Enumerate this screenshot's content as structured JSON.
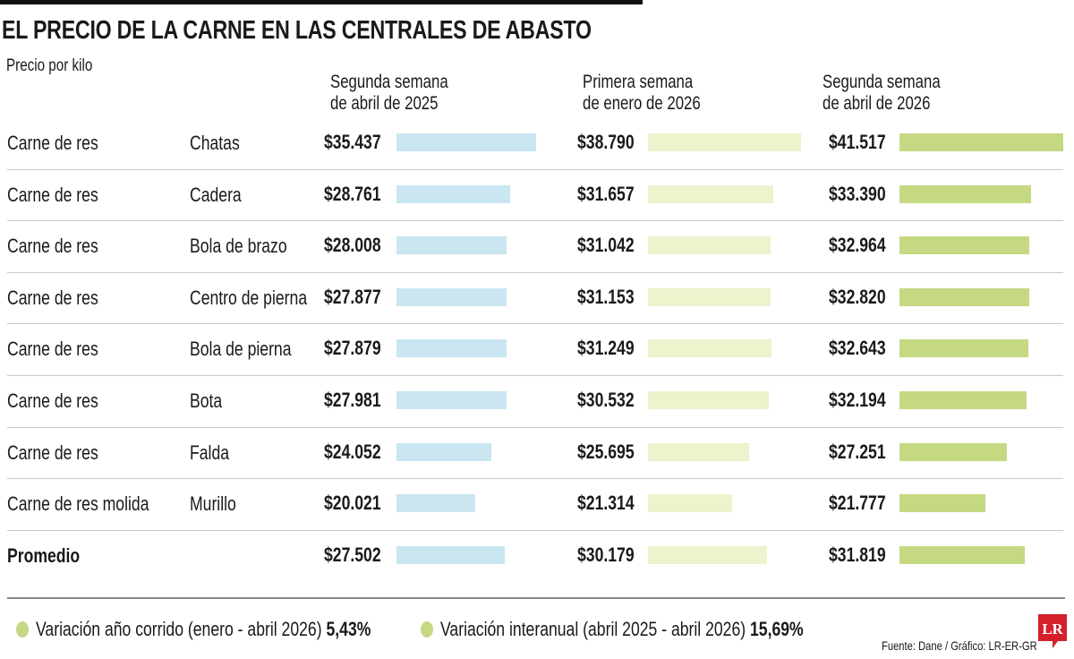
{
  "header": {
    "title": "EL PRECIO DE LA CARNE EN LAS CENTRALES DE ABASTO",
    "subtitle": "Precio por kilo"
  },
  "colors": {
    "2025_april": "#c9e6f1",
    "2026_january": "#eef2cd",
    "2026_april": "#c5d983"
  },
  "chart_data": {
    "type": "bar",
    "title": "EL PRECIO DE LA CARNE EN LAS CENTRALES DE ABASTO",
    "ylabel": "Precio por kilo",
    "rows": [
      {
        "product": "Carne de res",
        "cut": "Chatas",
        "labels": [
          "$35.437",
          "$38.790",
          "$41.517"
        ],
        "values": [
          35437,
          38790,
          41517
        ]
      },
      {
        "product": "Carne de res",
        "cut": "Cadera",
        "labels": [
          "$28.761",
          "$31.657",
          "$33.390"
        ],
        "values": [
          28761,
          31657,
          33390
        ]
      },
      {
        "product": "Carne de res",
        "cut": "Bola de brazo",
        "labels": [
          "$28.008",
          "$31.042",
          "$32.964"
        ],
        "values": [
          28008,
          31042,
          32964
        ]
      },
      {
        "product": "Carne de res",
        "cut": "Centro de pierna",
        "labels": [
          "$27.877",
          "$31.153",
          "$32.820"
        ],
        "values": [
          27877,
          31153,
          32820
        ]
      },
      {
        "product": "Carne de res",
        "cut": "Bola de pierna",
        "labels": [
          "$27.879",
          "$31.249",
          "$32.643"
        ],
        "values": [
          27879,
          31249,
          32643
        ]
      },
      {
        "product": "Carne de res",
        "cut": "Bota",
        "labels": [
          "$27.981",
          "$30.532",
          "$32.194"
        ],
        "values": [
          27981,
          30532,
          32194
        ]
      },
      {
        "product": "Carne de res",
        "cut": "Falda",
        "labels": [
          "$24.052",
          "$25.695",
          "$27.251"
        ],
        "values": [
          24052,
          25695,
          27251
        ]
      },
      {
        "product": "Carne de res molida",
        "cut": "Murillo",
        "labels": [
          "$20.021",
          "$21.314",
          "$21.777"
        ],
        "values": [
          20021,
          21314,
          21777
        ]
      },
      {
        "product": "Promedio",
        "cut": "",
        "labels": [
          "$27.502",
          "$30.179",
          "$31.819"
        ],
        "values": [
          27502,
          30179,
          31819
        ],
        "bold": true
      }
    ],
    "series": [
      {
        "name_line1": "Segunda semana",
        "name_line2": "de abril de 2025",
        "color": "#c9e6f1"
      },
      {
        "name_line1": "Primera semana",
        "name_line2": "de enero de 2026",
        "color": "#eef2cd"
      },
      {
        "name_line1": "Segunda semana",
        "name_line2": "de abril de 2026",
        "color": "#c5d983"
      }
    ]
  },
  "footer": {
    "legend1_text": "Variación año corrido (enero - abril 2026)",
    "legend1_value": "5,43%",
    "legend2_text": "Variación interanual (abril 2025 - abril 2026)",
    "legend2_value": "15,69%",
    "source": "Fuente: Dane / Gráfico: LR-ER-GR",
    "logo": "LR"
  }
}
